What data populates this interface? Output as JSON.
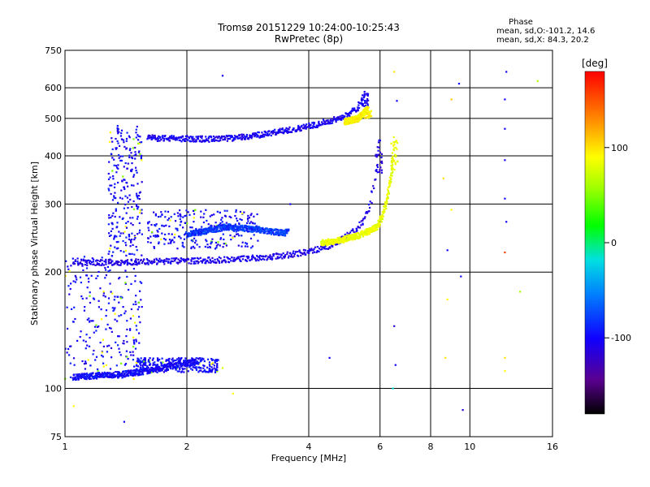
{
  "header": {
    "title_line1": "Tromsø 20151229 10:24:00-10:25:43",
    "title_line2": "RwPretec (8p)",
    "phase_title": "Phase",
    "phase_o": "mean, sd,O:-101.2, 14.6",
    "phase_x": "mean, sd,X:  84.3, 20.2"
  },
  "colorbar": {
    "unit_label": "[deg]",
    "ticks": [
      "100",
      "0",
      "-100"
    ],
    "tick_values": [
      100,
      0,
      -100
    ],
    "range": [
      -180,
      180
    ]
  },
  "chart_data": {
    "type": "scatter",
    "title": "Tromsø 20151229 10:24:00-10:25:43",
    "subtitle": "RwPretec (8p)",
    "xlabel": "Frequency [MHz]",
    "ylabel": "Stationary phase Virtual Height [km]",
    "xscale": "log",
    "yscale": "log",
    "xlim": [
      1,
      16
    ],
    "ylim": [
      75,
      750
    ],
    "x_ticks": [
      1,
      2,
      4,
      6,
      8,
      10,
      16
    ],
    "y_ticks": [
      75,
      100,
      200,
      300,
      400,
      500,
      600,
      750
    ],
    "grid": true,
    "color_meaning": "phase in degrees",
    "traces": [
      {
        "x": [
          1.05,
          1.3,
          1.6,
          2.0,
          2.4,
          2.8,
          3.2,
          3.6,
          4.0,
          4.4,
          4.8,
          5.2,
          5.5,
          5.7,
          5.85,
          5.95
        ],
        "y": [
          212,
          212,
          213,
          214,
          215,
          217,
          219,
          222,
          226,
          232,
          242,
          256,
          275,
          305,
          360,
          440
        ],
        "phase": -110
      },
      {
        "x": [
          1.6,
          2.0,
          2.4,
          2.8,
          3.3,
          3.8,
          4.2,
          4.6,
          5.0,
          5.3,
          5.5
        ],
        "y": [
          445,
          443,
          442,
          448,
          460,
          472,
          483,
          495,
          510,
          535,
          580
        ],
        "phase": -105
      },
      {
        "x": [
          4.3,
          4.8,
          5.4,
          5.9,
          6.1,
          6.25,
          6.4,
          6.5
        ],
        "y": [
          238,
          242,
          250,
          262,
          282,
          310,
          360,
          440
        ],
        "phase": 80
      },
      {
        "x": [
          4.9,
          5.3,
          5.6
        ],
        "y": [
          490,
          500,
          530
        ],
        "phase": 90
      },
      {
        "x": [
          1.05,
          1.2,
          1.4,
          1.6,
          1.8,
          2.0,
          2.1
        ],
        "y": [
          107,
          108,
          109,
          111,
          114,
          116,
          117
        ],
        "phase": -100
      },
      {
        "x": [
          2.0,
          2.5,
          3.0,
          3.5
        ],
        "y": [
          250,
          262,
          258,
          252
        ],
        "phase": -80
      }
    ],
    "points": [
      {
        "x": 2.45,
        "y": 645,
        "phase": -100
      },
      {
        "x": 9.4,
        "y": 615,
        "phase": -100
      },
      {
        "x": 12.3,
        "y": 660,
        "phase": -100
      },
      {
        "x": 12.2,
        "y": 560,
        "phase": -100
      },
      {
        "x": 12.2,
        "y": 470,
        "phase": -100
      },
      {
        "x": 12.2,
        "y": 390,
        "phase": -100
      },
      {
        "x": 12.2,
        "y": 310,
        "phase": -100
      },
      {
        "x": 12.3,
        "y": 270,
        "phase": -100
      },
      {
        "x": 12.2,
        "y": 225,
        "phase": 160
      },
      {
        "x": 9.0,
        "y": 290,
        "phase": 90
      },
      {
        "x": 8.6,
        "y": 350,
        "phase": 100
      },
      {
        "x": 8.8,
        "y": 228,
        "phase": -100
      },
      {
        "x": 9.5,
        "y": 195,
        "phase": -100
      },
      {
        "x": 8.8,
        "y": 170,
        "phase": 90
      },
      {
        "x": 6.5,
        "y": 660,
        "phase": 100
      },
      {
        "x": 6.6,
        "y": 555,
        "phase": -100
      },
      {
        "x": 6.5,
        "y": 145,
        "phase": -120
      },
      {
        "x": 6.55,
        "y": 115,
        "phase": -100
      },
      {
        "x": 6.45,
        "y": 100,
        "phase": -20
      },
      {
        "x": 9.6,
        "y": 88,
        "phase": -120
      },
      {
        "x": 1.4,
        "y": 82,
        "phase": -100
      },
      {
        "x": 1.05,
        "y": 90,
        "phase": 90
      },
      {
        "x": 2.6,
        "y": 97,
        "phase": 90
      },
      {
        "x": 2.45,
        "y": 113,
        "phase": 70
      },
      {
        "x": 12.2,
        "y": 111,
        "phase": 90
      },
      {
        "x": 12.2,
        "y": 120,
        "phase": 100
      },
      {
        "x": 13.3,
        "y": 178,
        "phase": 40
      },
      {
        "x": 14.7,
        "y": 625,
        "phase": 50
      },
      {
        "x": 3.6,
        "y": 300,
        "phase": -100
      },
      {
        "x": 4.5,
        "y": 120,
        "phase": -100
      },
      {
        "x": 8.7,
        "y": 120,
        "phase": 100
      },
      {
        "x": 9.0,
        "y": 560,
        "phase": 110
      }
    ],
    "clusters": [
      {
        "x": [
          1.0,
          1.55
        ],
        "y": [
          105,
          220
        ],
        "phase": -100
      },
      {
        "x": [
          1.28,
          1.55
        ],
        "y": [
          220,
          480
        ],
        "phase": -100
      },
      {
        "x": [
          1.5,
          2.4
        ],
        "y": [
          110,
          120
        ],
        "phase": -100
      },
      {
        "x": [
          1.6,
          3.0
        ],
        "y": [
          230,
          290
        ],
        "phase": -100
      }
    ]
  }
}
